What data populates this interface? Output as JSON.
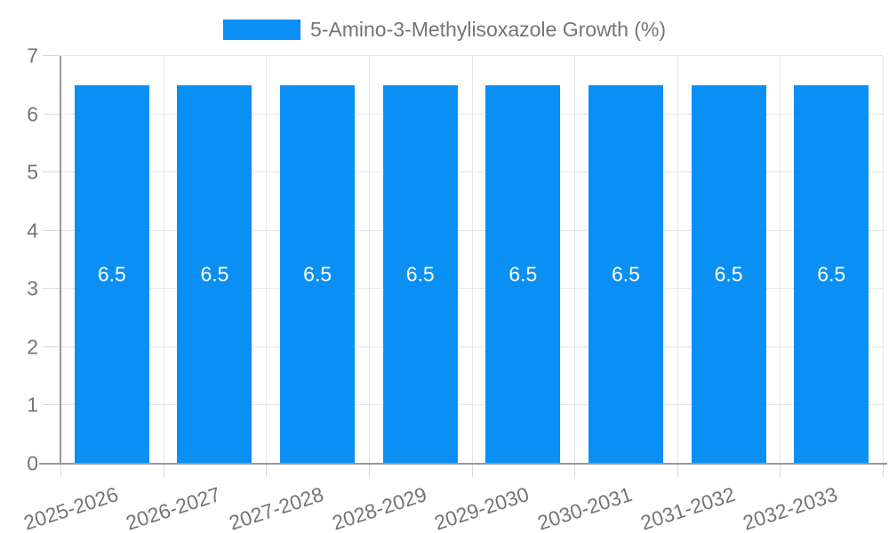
{
  "chart_data": {
    "type": "bar",
    "title": "5-Amino-3-Methylisoxazole Growth (%)",
    "categories": [
      "2025-2026",
      "2026-2027",
      "2027-2028",
      "2028-2029",
      "2029-2030",
      "2030-2031",
      "2031-2032",
      "2032-2033"
    ],
    "values": [
      6.5,
      6.5,
      6.5,
      6.5,
      6.5,
      6.5,
      6.5,
      6.5
    ],
    "bar_value_labels": [
      "6.5",
      "6.5",
      "6.5",
      "6.5",
      "6.5",
      "6.5",
      "6.5",
      "6.5"
    ],
    "xlabel": "",
    "ylabel": "",
    "ylim": [
      0,
      7
    ],
    "yticks": [
      0,
      1,
      2,
      3,
      4,
      5,
      6,
      7
    ],
    "grid": true,
    "legend_position": "top-center",
    "x_label_rotation_deg": -18,
    "colors": {
      "bar": "#0a90f5",
      "bar_label": "#ffffff",
      "gridline": "#e6e6e6",
      "tick": "#d9d9d9",
      "axis": "#999999",
      "text": "#757575",
      "background": "#ffffff"
    }
  }
}
